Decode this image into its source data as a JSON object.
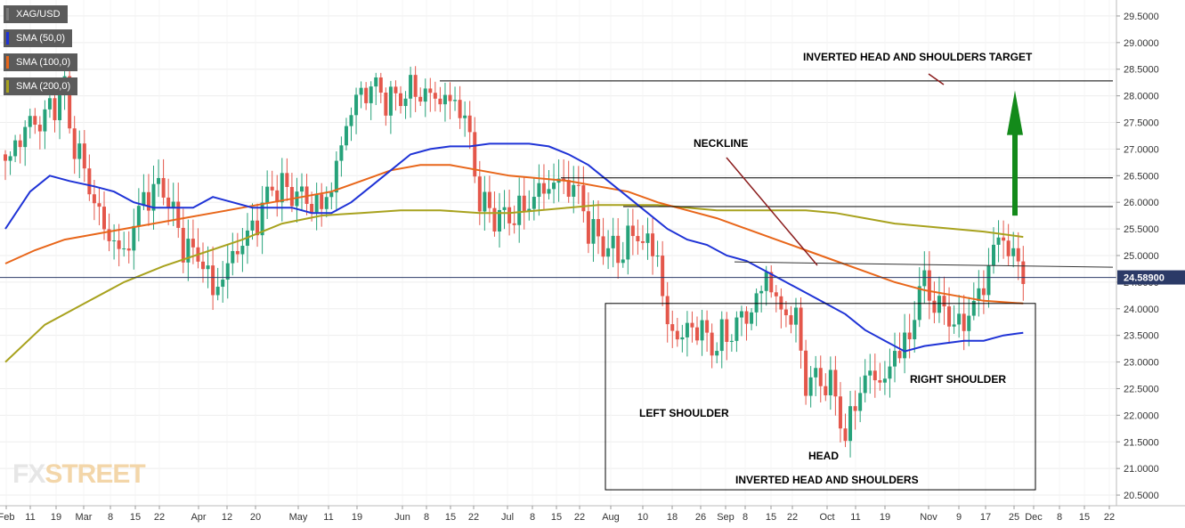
{
  "chart_data": {
    "type": "candlestick",
    "symbol": "XAG/USD",
    "legend": [
      {
        "label": "XAG/USD",
        "color": "#5b5b5b"
      },
      {
        "label": "SMA (50,0)",
        "color": "#1f33d6"
      },
      {
        "label": "SMA (100,0)",
        "color": "#e8661a"
      },
      {
        "label": "SMA (200,0)",
        "color": "#a8a21e"
      }
    ],
    "y_axis": {
      "range": [
        20.3,
        29.8
      ],
      "ticks": [
        "20.5000",
        "21.0000",
        "21.5000",
        "22.0000",
        "22.5000",
        "23.0000",
        "23.5000",
        "24.0000",
        "24.5000",
        "25.0000",
        "25.5000",
        "26.0000",
        "26.5000",
        "27.0000",
        "27.5000",
        "28.0000",
        "28.5000",
        "29.0000",
        "29.5000"
      ]
    },
    "x_axis": {
      "ticks": [
        "Feb",
        "11",
        "19",
        "Mar",
        "8",
        "15",
        "22",
        "Apr",
        "12",
        "20",
        "May",
        "11",
        "19",
        "Jun",
        "8",
        "15",
        "22",
        "Jul",
        "8",
        "15",
        "22",
        "Aug",
        "10",
        "18",
        "26",
        "Sep",
        "8",
        "15",
        "22",
        "Oct",
        "11",
        "19",
        "Nov",
        "9",
        "17",
        "25",
        "Dec",
        "8",
        "15",
        "22"
      ]
    },
    "current_price": "24.58900",
    "up_color": "#26a27a",
    "down_color": "#e4574b",
    "anchors": [
      [
        0,
        26.7
      ],
      [
        4,
        27.4
      ],
      [
        8,
        27.6
      ],
      [
        12,
        28.15
      ],
      [
        13,
        27.4
      ],
      [
        17,
        26.3
      ],
      [
        20,
        25.5
      ],
      [
        24,
        25.0
      ],
      [
        28,
        26.1
      ],
      [
        32,
        26.3
      ],
      [
        36,
        25.2
      ],
      [
        40,
        24.9
      ],
      [
        42,
        24.3
      ],
      [
        44,
        24.6
      ],
      [
        46,
        25.0
      ],
      [
        50,
        25.5
      ],
      [
        54,
        26.3
      ],
      [
        58,
        26.2
      ],
      [
        62,
        26.0
      ],
      [
        64,
        25.9
      ],
      [
        66,
        26.3
      ],
      [
        70,
        27.8
      ],
      [
        74,
        28.2
      ],
      [
        78,
        27.9
      ],
      [
        82,
        28.1
      ],
      [
        86,
        28.0
      ],
      [
        90,
        27.9
      ],
      [
        92,
        27.8
      ],
      [
        94,
        27.2
      ],
      [
        96,
        26.0
      ],
      [
        100,
        25.7
      ],
      [
        104,
        25.8
      ],
      [
        108,
        26.2
      ],
      [
        112,
        26.4
      ],
      [
        116,
        26.2
      ],
      [
        118,
        25.5
      ],
      [
        120,
        25.3
      ],
      [
        124,
        25.0
      ],
      [
        126,
        25.3
      ],
      [
        128,
        25.4
      ],
      [
        130,
        25.2
      ],
      [
        132,
        25.0
      ],
      [
        134,
        23.6
      ],
      [
        137,
        23.5
      ],
      [
        140,
        23.7
      ],
      [
        143,
        23.3
      ],
      [
        146,
        23.5
      ],
      [
        149,
        23.8
      ],
      [
        152,
        24.1
      ],
      [
        154,
        24.7
      ],
      [
        156,
        24.1
      ],
      [
        158,
        23.9
      ],
      [
        160,
        23.8
      ],
      [
        162,
        22.6
      ],
      [
        165,
        22.7
      ],
      [
        168,
        22.4
      ],
      [
        170,
        21.5
      ],
      [
        172,
        22.3
      ],
      [
        175,
        22.8
      ],
      [
        178,
        22.6
      ],
      [
        180,
        23.2
      ],
      [
        183,
        23.4
      ],
      [
        185,
        24.5
      ],
      [
        187,
        24.3
      ],
      [
        189,
        24.0
      ],
      [
        191,
        23.9
      ],
      [
        193,
        23.6
      ],
      [
        196,
        24.1
      ],
      [
        198,
        24.4
      ],
      [
        200,
        25.2
      ],
      [
        202,
        25.3
      ],
      [
        204,
        25.0
      ],
      [
        206,
        24.59
      ]
    ],
    "sma50": [
      [
        0,
        25.5
      ],
      [
        5,
        26.2
      ],
      [
        9,
        26.5
      ],
      [
        13,
        26.4
      ],
      [
        18,
        26.3
      ],
      [
        22,
        26.2
      ],
      [
        26,
        26.0
      ],
      [
        30,
        25.9
      ],
      [
        34,
        25.9
      ],
      [
        38,
        25.9
      ],
      [
        42,
        26.1
      ],
      [
        46,
        26.0
      ],
      [
        50,
        25.9
      ],
      [
        54,
        25.9
      ],
      [
        58,
        25.9
      ],
      [
        62,
        25.8
      ],
      [
        66,
        25.8
      ],
      [
        70,
        26.0
      ],
      [
        74,
        26.3
      ],
      [
        78,
        26.6
      ],
      [
        82,
        26.9
      ],
      [
        86,
        27.0
      ],
      [
        90,
        27.05
      ],
      [
        94,
        27.05
      ],
      [
        98,
        27.1
      ],
      [
        102,
        27.1
      ],
      [
        106,
        27.1
      ],
      [
        110,
        27.05
      ],
      [
        114,
        26.9
      ],
      [
        118,
        26.7
      ],
      [
        122,
        26.4
      ],
      [
        126,
        26.1
      ],
      [
        130,
        25.8
      ],
      [
        134,
        25.5
      ],
      [
        138,
        25.3
      ],
      [
        142,
        25.2
      ],
      [
        146,
        25.0
      ],
      [
        150,
        24.9
      ],
      [
        154,
        24.7
      ],
      [
        158,
        24.5
      ],
      [
        162,
        24.3
      ],
      [
        166,
        24.1
      ],
      [
        170,
        23.9
      ],
      [
        174,
        23.6
      ],
      [
        178,
        23.4
      ],
      [
        182,
        23.2
      ],
      [
        186,
        23.3
      ],
      [
        190,
        23.35
      ],
      [
        194,
        23.4
      ],
      [
        198,
        23.4
      ],
      [
        202,
        23.5
      ],
      [
        206,
        23.55
      ]
    ],
    "sma100": [
      [
        0,
        24.85
      ],
      [
        6,
        25.1
      ],
      [
        12,
        25.3
      ],
      [
        18,
        25.4
      ],
      [
        24,
        25.5
      ],
      [
        30,
        25.6
      ],
      [
        36,
        25.7
      ],
      [
        42,
        25.8
      ],
      [
        48,
        25.9
      ],
      [
        54,
        26.0
      ],
      [
        60,
        26.1
      ],
      [
        66,
        26.2
      ],
      [
        72,
        26.4
      ],
      [
        78,
        26.6
      ],
      [
        84,
        26.7
      ],
      [
        90,
        26.7
      ],
      [
        96,
        26.6
      ],
      [
        102,
        26.5
      ],
      [
        108,
        26.45
      ],
      [
        114,
        26.4
      ],
      [
        120,
        26.3
      ],
      [
        126,
        26.2
      ],
      [
        132,
        26.0
      ],
      [
        138,
        25.85
      ],
      [
        144,
        25.7
      ],
      [
        150,
        25.5
      ],
      [
        156,
        25.3
      ],
      [
        162,
        25.1
      ],
      [
        168,
        24.9
      ],
      [
        174,
        24.7
      ],
      [
        180,
        24.5
      ],
      [
        186,
        24.35
      ],
      [
        192,
        24.25
      ],
      [
        198,
        24.15
      ],
      [
        206,
        24.1
      ]
    ],
    "sma200": [
      [
        0,
        23.0
      ],
      [
        8,
        23.7
      ],
      [
        16,
        24.1
      ],
      [
        24,
        24.5
      ],
      [
        32,
        24.8
      ],
      [
        40,
        25.05
      ],
      [
        48,
        25.3
      ],
      [
        56,
        25.6
      ],
      [
        64,
        25.75
      ],
      [
        72,
        25.8
      ],
      [
        80,
        25.85
      ],
      [
        88,
        25.85
      ],
      [
        96,
        25.8
      ],
      [
        102,
        25.8
      ],
      [
        108,
        25.85
      ],
      [
        114,
        25.9
      ],
      [
        120,
        25.95
      ],
      [
        126,
        25.95
      ],
      [
        132,
        25.95
      ],
      [
        138,
        25.9
      ],
      [
        144,
        25.85
      ],
      [
        150,
        25.85
      ],
      [
        156,
        25.85
      ],
      [
        162,
        25.85
      ],
      [
        168,
        25.8
      ],
      [
        174,
        25.7
      ],
      [
        180,
        25.6
      ],
      [
        186,
        25.55
      ],
      [
        192,
        25.5
      ],
      [
        198,
        25.45
      ],
      [
        206,
        25.35
      ]
    ],
    "horizontal_levels": [
      "28.2800",
      "26.4600",
      "25.9200"
    ],
    "neckline": {
      "from": [
        151,
        24.88
      ],
      "to": [
        207,
        24.78
      ]
    },
    "target_arrow": {
      "from": 25.75,
      "to": 28.1
    },
    "pattern_box": {
      "x_from": 124,
      "x_to": 214,
      "y_top": 24.1,
      "y_bottom": 20.6
    },
    "annotations": {
      "target_title": "INVERTED HEAD AND SHOULDERS TARGET",
      "neckline": "NECKLINE",
      "left_shoulder": "LEFT SHOULDER",
      "head": "HEAD",
      "right_shoulder": "RIGHT SHOULDER",
      "pattern": "INVERTED HEAD AND SHOULDERS"
    },
    "watermark": {
      "part1": "FX",
      "part2": "STREET"
    }
  }
}
